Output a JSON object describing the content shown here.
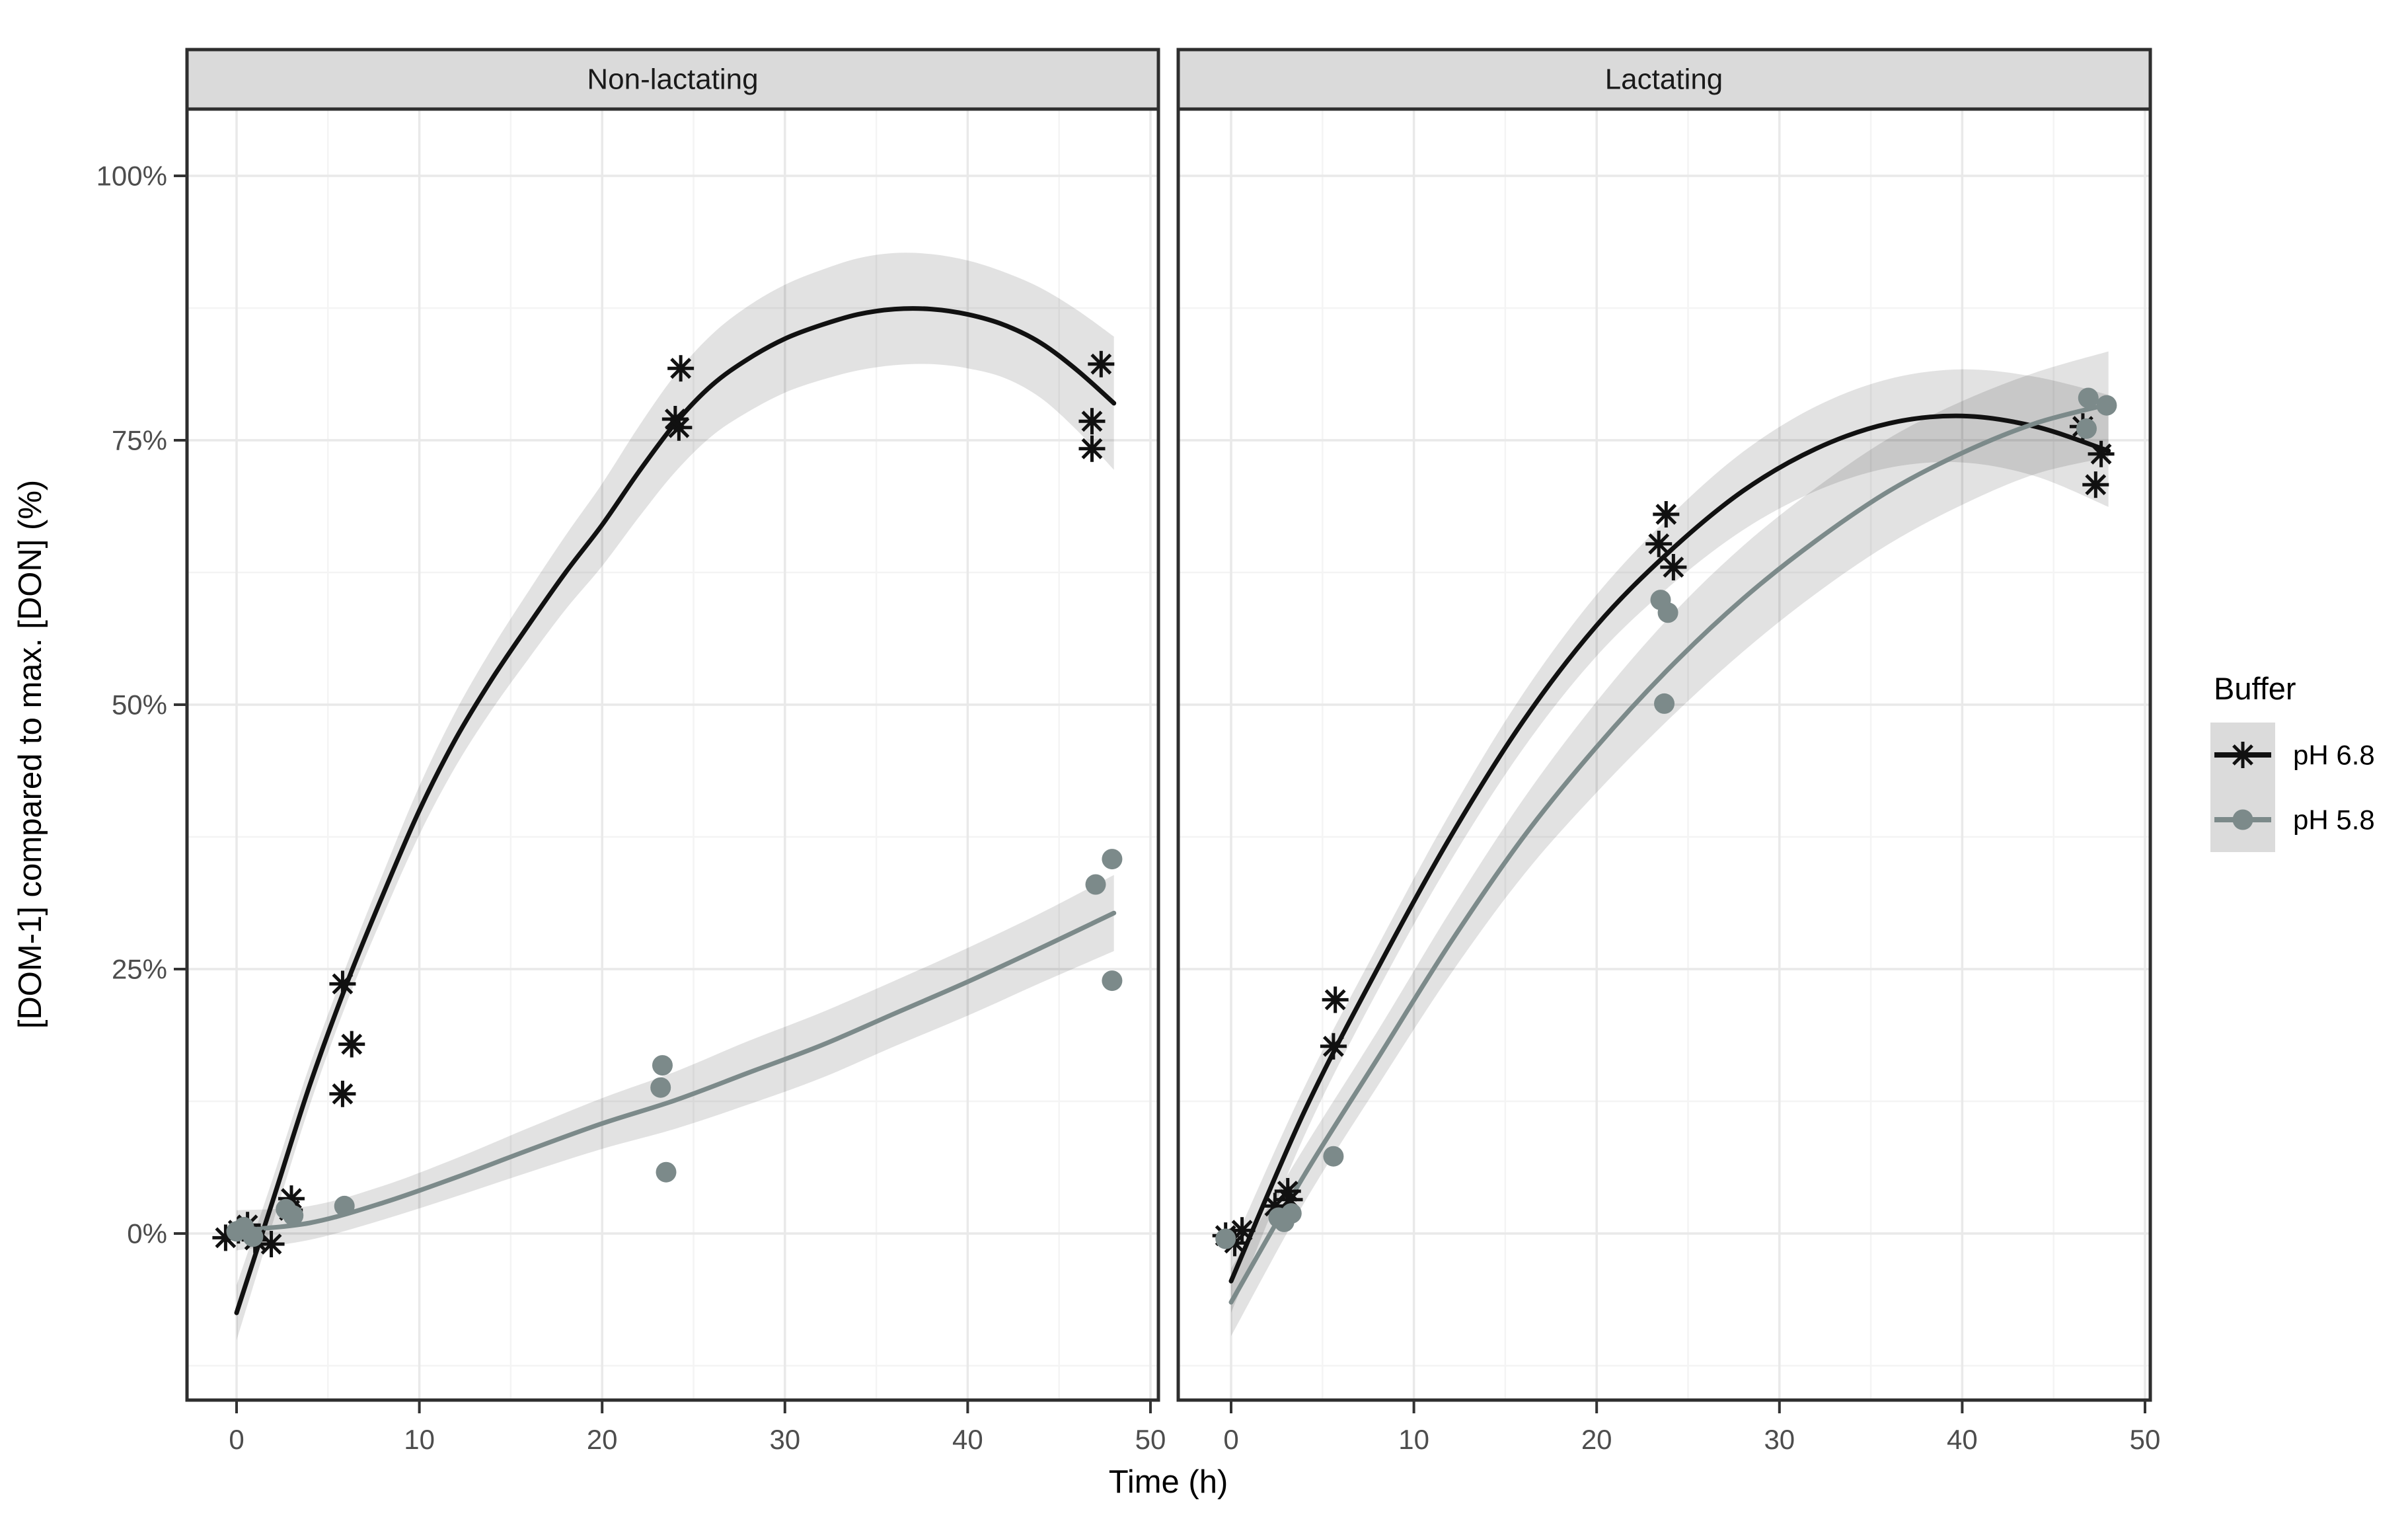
{
  "chart_data": {
    "type": "scatter",
    "subtype": "faceted scatter with loess smooth and confidence ribbons",
    "xlabel": "Time (h)",
    "ylabel": "[DOM-1] compared to max. [DON] (%)",
    "x_ticks": [
      0,
      10,
      20,
      30,
      40,
      50
    ],
    "x_tick_labels": [
      "0",
      "10",
      "20",
      "30",
      "40",
      "50"
    ],
    "x_minor_ticks": [
      5,
      15,
      25,
      35,
      45
    ],
    "y_ticks": [
      0,
      25,
      50,
      75,
      100
    ],
    "y_tick_labels": [
      "0%",
      "25%",
      "50%",
      "75%",
      "100%"
    ],
    "y_minor_ticks": [
      -12.5,
      12.5,
      37.5,
      62.5,
      87.5
    ],
    "xlim": [
      -2.7,
      51.1
    ],
    "ylim": [
      -15.7,
      106.3
    ],
    "grid": "major and minor, very light gray, on white panel",
    "colors": {
      "ph68": "#111111",
      "ph58": "#7c8a8a",
      "ribbon": "rgba(0,0,0,0.115)",
      "grid_major": "#e9e9e9",
      "grid_minor": "#f4f4f4",
      "panel_border": "#2e2e2e",
      "strip_fill": "#dadada",
      "tick_text": "#4d4d4d",
      "legend_key_fill": "#dbdbdb"
    },
    "legend": {
      "title": "Buffer",
      "position": "right",
      "entries": [
        {
          "label": "pH 6.8",
          "marker": "asterisk",
          "color": "#111111"
        },
        {
          "label": "pH 5.8",
          "marker": "circle",
          "color": "#7c8a8a"
        }
      ]
    },
    "facets": [
      {
        "label": "Non-lactating",
        "series": [
          {
            "name": "pH 6.8",
            "marker": "asterisk",
            "color": "#111111",
            "points": [
              [
                -0.6,
                -0.4
              ],
              [
                0.1,
                0.3
              ],
              [
                0.6,
                0.8
              ],
              [
                1.0,
                -0.6
              ],
              [
                1.9,
                -1.0
              ],
              [
                2.9,
                2.2
              ],
              [
                3.0,
                3.3
              ],
              [
                5.8,
                23.6
              ],
              [
                6.3,
                17.9
              ],
              [
                5.8,
                13.2
              ],
              [
                24.3,
                81.8
              ],
              [
                24.0,
                77.0
              ],
              [
                24.2,
                76.2
              ],
              [
                47.3,
                82.2
              ],
              [
                46.8,
                76.8
              ],
              [
                46.8,
                74.2
              ]
            ],
            "smooth": {
              "x": [
                0,
                2,
                4,
                6,
                8,
                10,
                12,
                14,
                16,
                18,
                20,
                22,
                24,
                26,
                28,
                30,
                32,
                34,
                36,
                38,
                40,
                42,
                44,
                46,
                48
              ],
              "y": [
                -7.5,
                3.2,
                14,
                23.5,
                32,
                40,
                46.8,
                52.5,
                57.6,
                62.5,
                67,
                72,
                76.6,
                80.2,
                82.7,
                84.6,
                85.9,
                86.9,
                87.4,
                87.4,
                86.9,
                85.9,
                84.2,
                81.6,
                78.5
              ],
              "halfwidth": [
                2.6,
                2.1,
                1.9,
                1.8,
                2.0,
                2.3,
                2.6,
                2.9,
                3.2,
                3.5,
                3.9,
                4.3,
                4.6,
                4.8,
                5.0,
                5.1,
                5.2,
                5.3,
                5.3,
                5.2,
                5.1,
                5.0,
                5.2,
                5.7,
                6.3
              ]
            }
          },
          {
            "name": "pH 5.8",
            "marker": "circle",
            "color": "#7c8a8a",
            "points": [
              [
                0.0,
                0.2
              ],
              [
                0.4,
                0.6
              ],
              [
                0.9,
                -0.3
              ],
              [
                2.7,
                2.3
              ],
              [
                3.1,
                1.7
              ],
              [
                5.9,
                2.6
              ],
              [
                23.3,
                15.9
              ],
              [
                23.2,
                13.8
              ],
              [
                23.5,
                5.8
              ],
              [
                47.9,
                35.4
              ],
              [
                47.0,
                33.0
              ],
              [
                47.9,
                23.9
              ]
            ],
            "smooth": {
              "x": [
                0,
                4,
                8,
                12,
                16,
                20,
                24,
                28,
                32,
                36,
                40,
                44,
                48
              ],
              "y": [
                0.3,
                1.0,
                2.9,
                5.3,
                7.9,
                10.4,
                12.6,
                15.2,
                17.8,
                20.8,
                23.8,
                27.0,
                30.3
              ],
              "halfwidth": [
                1.9,
                1.6,
                1.6,
                1.8,
                2.1,
                2.4,
                2.7,
                3.0,
                3.1,
                3.1,
                3.2,
                3.3,
                3.6
              ]
            }
          }
        ]
      },
      {
        "label": "Lactating",
        "series": [
          {
            "name": "pH 6.8",
            "marker": "asterisk",
            "color": "#111111",
            "points": [
              [
                -0.3,
                -0.2
              ],
              [
                0.2,
                -0.9
              ],
              [
                0.6,
                0.3
              ],
              [
                2.4,
                2.6
              ],
              [
                3.1,
                4.0
              ],
              [
                3.2,
                3.2
              ],
              [
                5.7,
                22.1
              ],
              [
                5.6,
                17.7
              ],
              [
                23.8,
                68.0
              ],
              [
                23.4,
                65.2
              ],
              [
                24.2,
                63.0
              ],
              [
                46.6,
                76.3
              ],
              [
                47.6,
                73.7
              ],
              [
                47.3,
                70.8
              ]
            ],
            "smooth": {
              "x": [
                0,
                4,
                8,
                12,
                16,
                20,
                24,
                28,
                32,
                36,
                40,
                44,
                48
              ],
              "y": [
                -4.5,
                11.5,
                25,
                37.5,
                48.5,
                57.5,
                64.5,
                70.2,
                74.2,
                76.6,
                77.3,
                76.3,
                74.0
              ],
              "halfwidth": [
                3.0,
                2.3,
                2.1,
                2.3,
                2.6,
                2.9,
                3.3,
                3.7,
                4.0,
                4.2,
                4.4,
                4.7,
                5.3
              ]
            }
          },
          {
            "name": "pH 5.8",
            "marker": "circle",
            "color": "#7c8a8a",
            "points": [
              [
                -0.3,
                -0.5
              ],
              [
                2.6,
                1.5
              ],
              [
                2.9,
                1.1
              ],
              [
                3.3,
                1.9
              ],
              [
                5.6,
                7.3
              ],
              [
                23.5,
                59.9
              ],
              [
                23.9,
                58.7
              ],
              [
                23.7,
                50.1
              ],
              [
                46.9,
                79.0
              ],
              [
                47.9,
                78.3
              ],
              [
                46.8,
                76.1
              ]
            ],
            "smooth": {
              "x": [
                0,
                4,
                8,
                12,
                16,
                20,
                24,
                28,
                32,
                36,
                40,
                44,
                48
              ],
              "y": [
                -6.5,
                5.5,
                16.5,
                27.5,
                37.5,
                46,
                53.5,
                60,
                65.5,
                70.2,
                73.8,
                76.6,
                78.4
              ],
              "halfwidth": [
                3.2,
                2.6,
                2.6,
                3.0,
                3.6,
                4.3,
                4.8,
                5.0,
                5.0,
                5.0,
                4.9,
                4.8,
                5.0
              ]
            }
          }
        ]
      }
    ]
  }
}
